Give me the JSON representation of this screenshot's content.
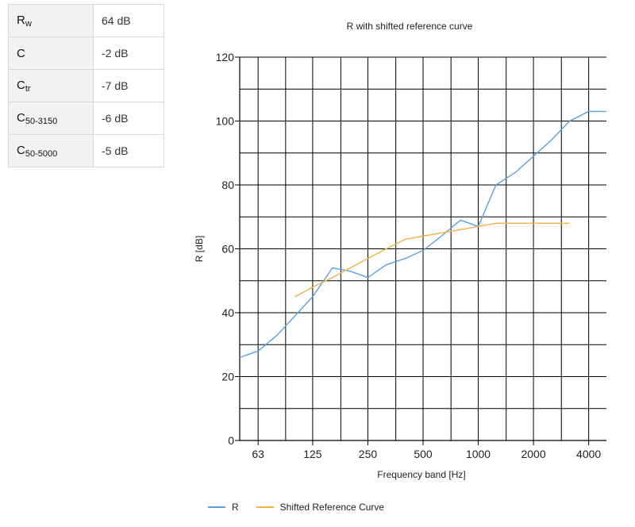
{
  "metrics": [
    {
      "label": "R",
      "sub": "w",
      "value": "64 dB"
    },
    {
      "label": "C",
      "sub": "",
      "value": "-2 dB"
    },
    {
      "label": "C",
      "sub": "tr",
      "value": "-7 dB"
    },
    {
      "label": "C",
      "sub": "50-3150",
      "value": "-6 dB"
    },
    {
      "label": "C",
      "sub": "50-5000",
      "value": "-5 dB"
    }
  ],
  "chart_data": {
    "type": "line",
    "title": "R with shifted reference curve",
    "xlabel": "Frequency band [Hz]",
    "ylabel": "R [dB]",
    "x_scale": "log",
    "xlim": [
      50,
      5000
    ],
    "ylim": [
      0,
      120
    ],
    "x_ticks": [
      63,
      125,
      250,
      500,
      1000,
      2000,
      4000
    ],
    "x_tick_labels": [
      "63",
      "125",
      "250",
      "500",
      "1000",
      "2000",
      "4000"
    ],
    "y_ticks": [
      0,
      20,
      40,
      60,
      80,
      100,
      120
    ],
    "grid": true,
    "legend_position": "bottom-left",
    "series": [
      {
        "name": "R",
        "color": "#5aa0e0",
        "x": [
          50,
          63,
          80,
          100,
          125,
          160,
          200,
          250,
          315,
          400,
          500,
          630,
          800,
          1000,
          1250,
          1600,
          2000,
          2500,
          3150,
          4000,
          5000
        ],
        "y": [
          26,
          28,
          33,
          39,
          45,
          54,
          53,
          51,
          55,
          57,
          59.5,
          64,
          69,
          67,
          80,
          84,
          89,
          94,
          100,
          103,
          103
        ]
      },
      {
        "name": "Shifted Reference Curve",
        "color": "#f5b04a",
        "x": [
          100,
          125,
          160,
          200,
          250,
          315,
          400,
          500,
          630,
          800,
          1000,
          1250,
          1600,
          2000,
          2500,
          3150
        ],
        "y": [
          45,
          48,
          51,
          54,
          57,
          60,
          63,
          64,
          65,
          66,
          67,
          68,
          68,
          68,
          68,
          68
        ]
      }
    ]
  }
}
